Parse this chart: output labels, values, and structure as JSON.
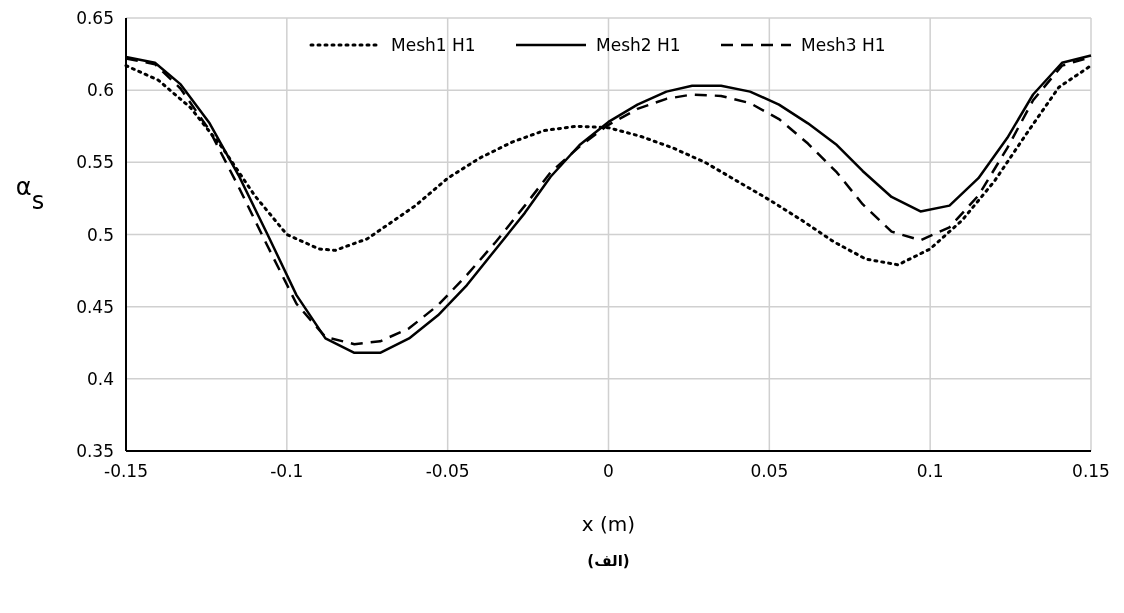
{
  "chart_data": {
    "type": "line",
    "xlabel": "x (m)",
    "ylabel": "α$_{s}$",
    "annotations": [
      "(الف)"
    ],
    "xlim": [
      -0.15,
      0.15
    ],
    "xticks": [
      -0.15,
      -0.1,
      -0.05,
      0,
      0.05,
      0.1,
      0.15
    ],
    "ylim": [
      0.35,
      0.65
    ],
    "yticks": [
      0.35,
      0.4,
      0.45,
      0.5,
      0.55,
      0.6,
      0.65
    ],
    "grid": true,
    "legend": "top",
    "series": [
      {
        "name": "Mesh1 H1",
        "color": "#000000",
        "line_style": "dotted",
        "x": [
          -0.15,
          -0.14,
          -0.13,
          -0.12,
          -0.11,
          -0.1,
          -0.09,
          -0.085,
          -0.075,
          -0.06,
          -0.05,
          -0.04,
          -0.03,
          -0.02,
          -0.01,
          0,
          0.01,
          0.02,
          0.03,
          0.04,
          0.05,
          0.06,
          0.07,
          0.08,
          0.09,
          0.1,
          0.11,
          0.12,
          0.13,
          0.14,
          0.15
        ],
        "values": [
          0.617,
          0.607,
          0.588,
          0.56,
          0.527,
          0.5,
          0.49,
          0.489,
          0.497,
          0.52,
          0.539,
          0.553,
          0.564,
          0.572,
          0.575,
          0.574,
          0.568,
          0.56,
          0.55,
          0.537,
          0.524,
          0.51,
          0.495,
          0.483,
          0.479,
          0.49,
          0.51,
          0.537,
          0.57,
          0.602,
          0.617
        ]
      },
      {
        "name": "Mesh2 H1",
        "color": "#000000",
        "line_style": "solid",
        "x": [
          -0.15,
          -0.141,
          -0.133,
          -0.124,
          -0.115,
          -0.106,
          -0.097,
          -0.088,
          -0.079,
          -0.071,
          -0.062,
          -0.053,
          -0.044,
          -0.035,
          -0.026,
          -0.018,
          -0.009,
          0,
          0.009,
          0.018,
          0.026,
          0.035,
          0.044,
          0.053,
          0.062,
          0.071,
          0.079,
          0.088,
          0.097,
          0.106,
          0.115,
          0.124,
          0.132,
          0.141,
          0.15
        ],
        "values": [
          0.623,
          0.619,
          0.604,
          0.577,
          0.541,
          0.5,
          0.458,
          0.428,
          0.418,
          0.418,
          0.428,
          0.444,
          0.465,
          0.49,
          0.515,
          0.54,
          0.562,
          0.578,
          0.59,
          0.599,
          0.603,
          0.603,
          0.599,
          0.59,
          0.577,
          0.562,
          0.544,
          0.526,
          0.516,
          0.52,
          0.539,
          0.567,
          0.597,
          0.619,
          0.624
        ]
      },
      {
        "name": "Mesh3 H1",
        "color": "#000000",
        "line_style": "dashed",
        "x": [
          -0.15,
          -0.141,
          -0.133,
          -0.124,
          -0.115,
          -0.106,
          -0.097,
          -0.088,
          -0.079,
          -0.071,
          -0.062,
          -0.053,
          -0.044,
          -0.035,
          -0.026,
          -0.018,
          -0.009,
          0,
          0.009,
          0.018,
          0.026,
          0.035,
          0.044,
          0.053,
          0.062,
          0.071,
          0.079,
          0.088,
          0.097,
          0.106,
          0.115,
          0.124,
          0.132,
          0.141,
          0.15
        ],
        "values": [
          0.622,
          0.618,
          0.601,
          0.572,
          0.533,
          0.492,
          0.452,
          0.429,
          0.424,
          0.426,
          0.435,
          0.451,
          0.472,
          0.495,
          0.52,
          0.543,
          0.561,
          0.576,
          0.587,
          0.594,
          0.597,
          0.596,
          0.591,
          0.58,
          0.563,
          0.543,
          0.521,
          0.502,
          0.496,
          0.505,
          0.527,
          0.56,
          0.593,
          0.617,
          0.623
        ]
      }
    ]
  }
}
